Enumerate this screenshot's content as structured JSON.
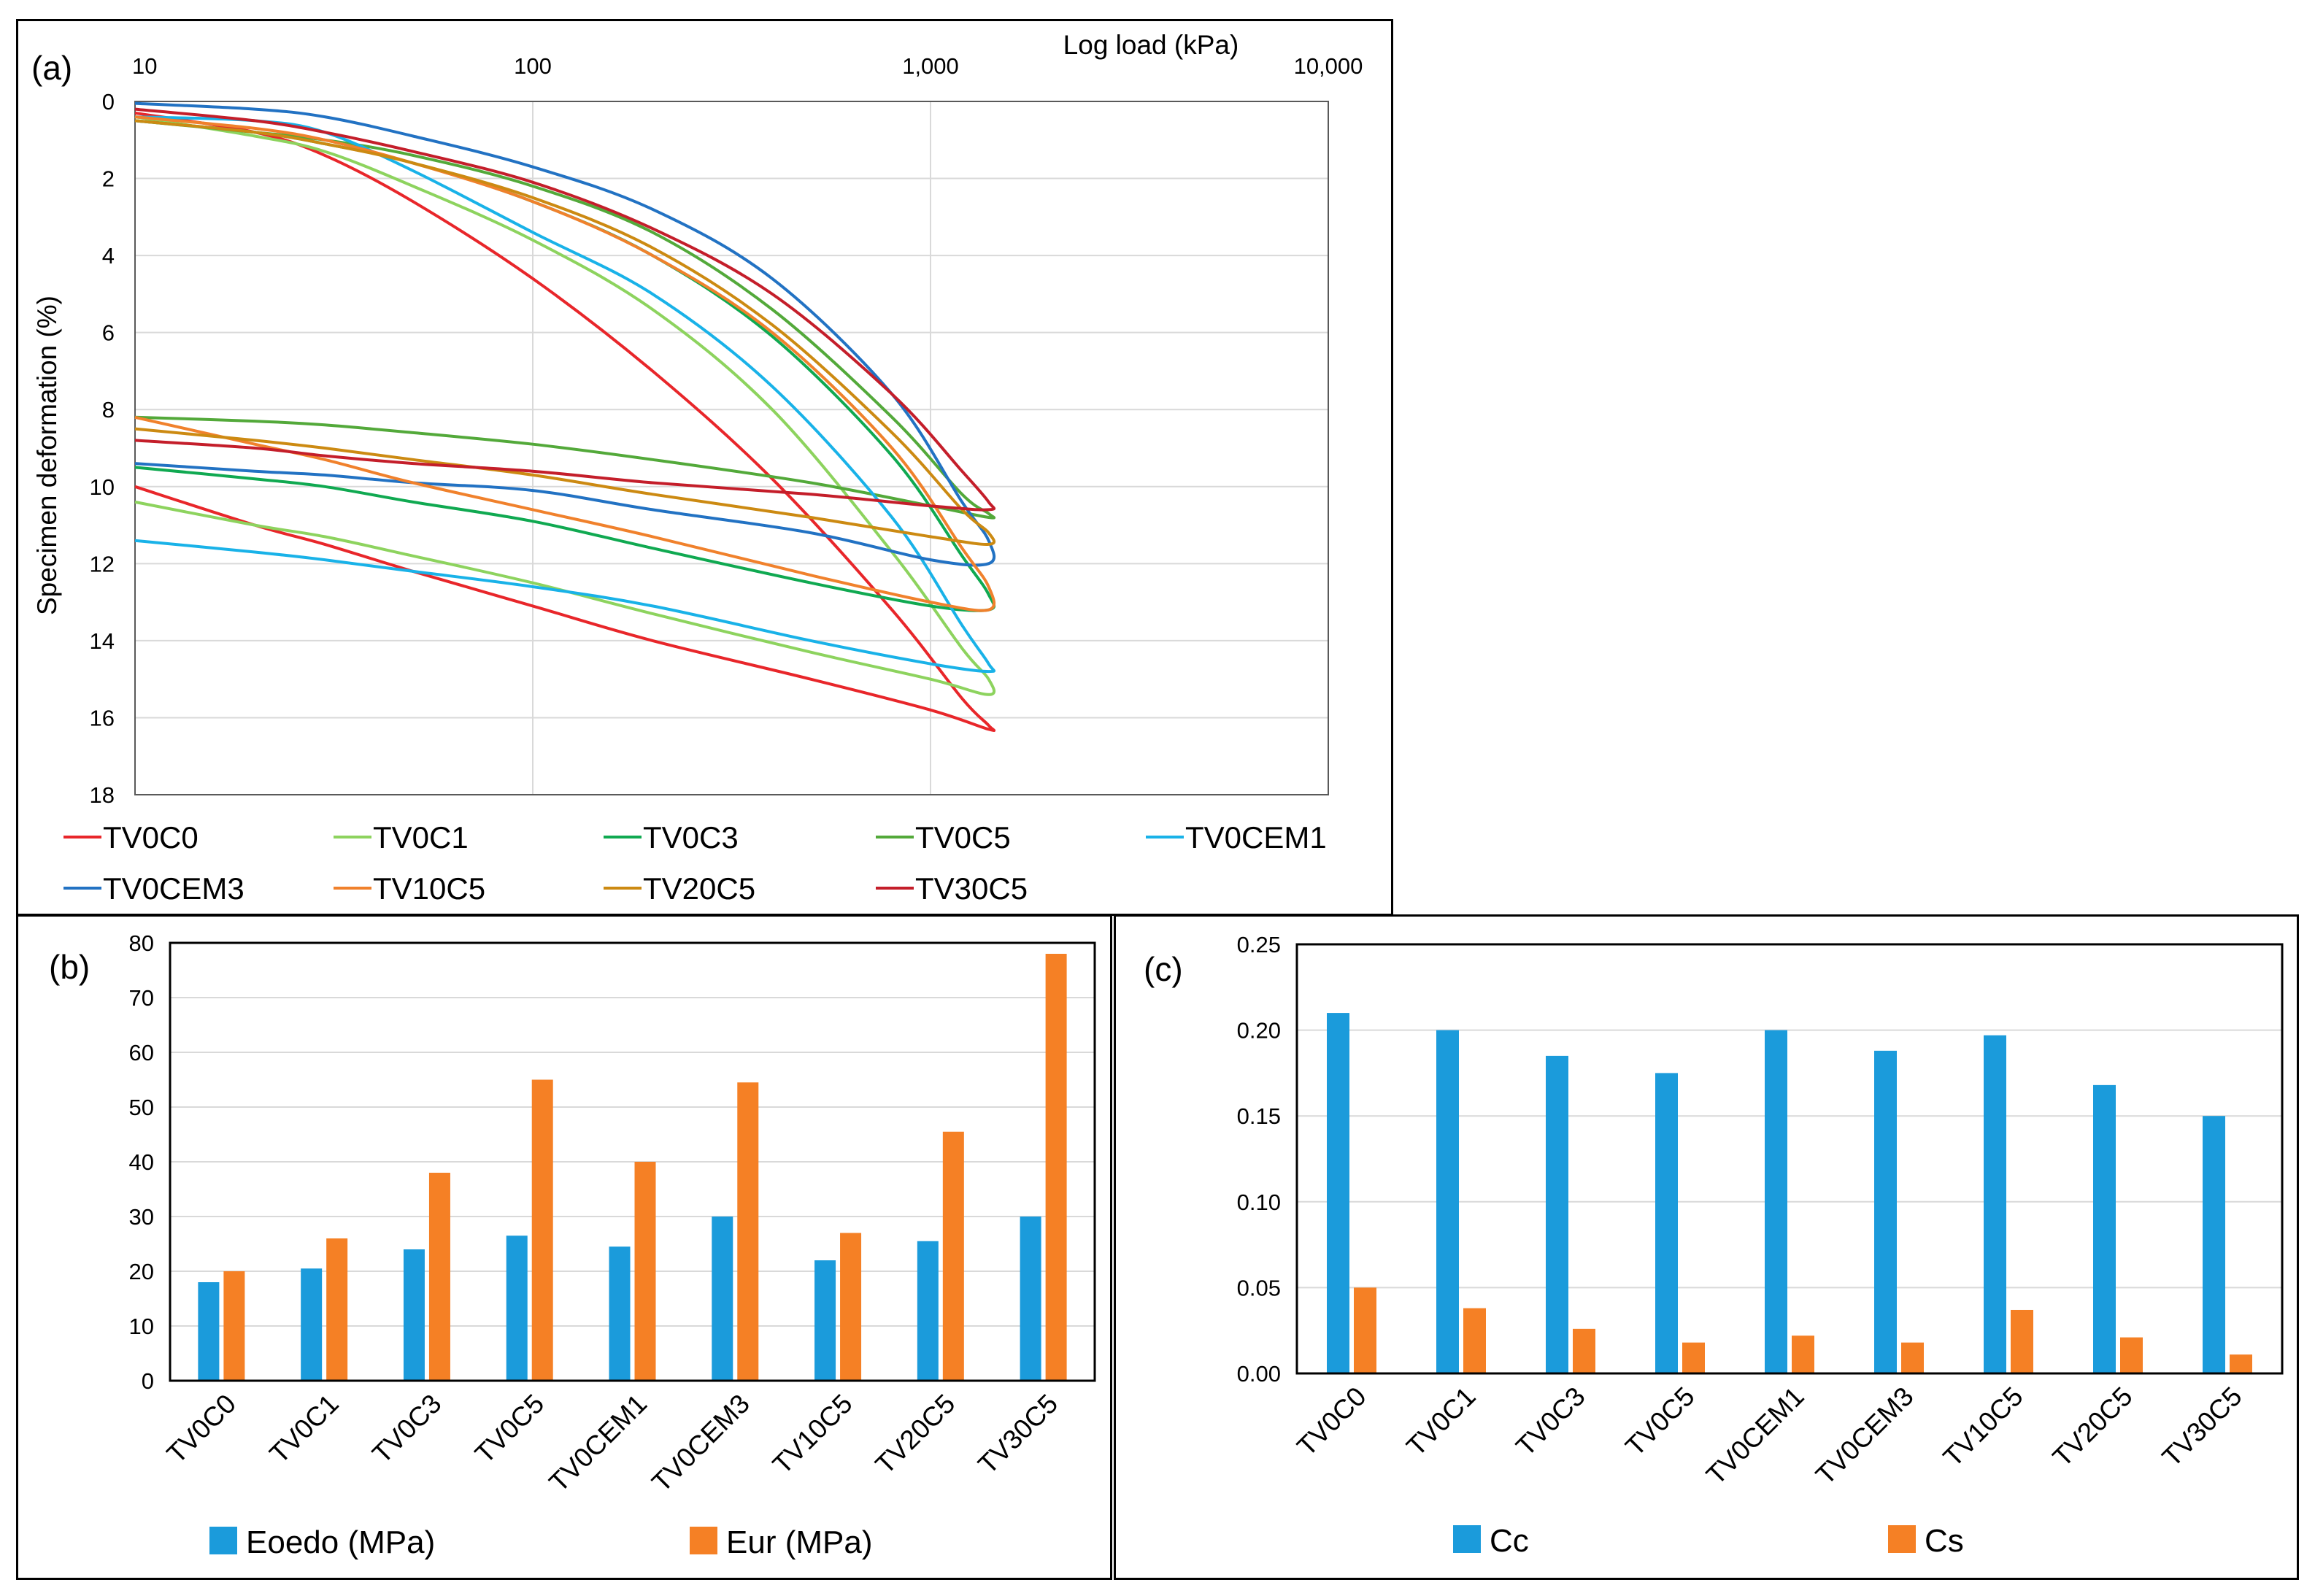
{
  "chart_data": [
    {
      "id": "a",
      "type": "line",
      "panel_label": "(a)",
      "title": "",
      "xlabel": "Log load (kPa)",
      "ylabel": "Specimen deformation (%)",
      "xscale": "log",
      "xlim": [
        10,
        10000
      ],
      "ylim": [
        0,
        18
      ],
      "y_inverted": true,
      "x_ticks": [
        10,
        100,
        1000,
        10000
      ],
      "x_tick_labels": [
        "10",
        "100",
        "1,000",
        "10,000"
      ],
      "y_ticks": [
        0,
        2,
        4,
        6,
        8,
        10,
        12,
        14,
        16,
        18
      ],
      "y_tick_labels": [
        "0",
        "2",
        "4",
        "6",
        "8",
        "10",
        "12",
        "14",
        "16",
        "18"
      ],
      "grid": true,
      "legend_position": "bottom",
      "series": [
        {
          "name": "TV0C0",
          "color": "#E8262A",
          "loading": {
            "x": [
              10,
              20,
              30,
              50,
              100,
              200,
              400,
              800,
              1200,
              1400
            ],
            "y": [
              0.3,
              0.8,
              1.4,
              2.6,
              4.6,
              7.0,
              9.8,
              13.2,
              15.5,
              16.2
            ]
          },
          "unloading": {
            "x": [
              1400,
              1000,
              500,
              200,
              100,
              50,
              30,
              20,
              10
            ],
            "y": [
              16.3,
              15.8,
              15.0,
              14.0,
              13.1,
              12.2,
              11.5,
              11.0,
              10.0
            ]
          }
        },
        {
          "name": "TV0C1",
          "color": "#8DD35E",
          "loading": {
            "x": [
              10,
              20,
              30,
              50,
              100,
              200,
              400,
              800,
              1200,
              1400
            ],
            "y": [
              0.4,
              0.9,
              1.3,
              2.2,
              3.6,
              5.4,
              8.0,
              11.7,
              14.2,
              15.0
            ]
          },
          "unloading": {
            "x": [
              1400,
              1000,
              500,
              200,
              100,
              50,
              30,
              20,
              10
            ],
            "y": [
              15.4,
              15.0,
              14.3,
              13.3,
              12.5,
              11.8,
              11.3,
              11.0,
              10.4
            ]
          }
        },
        {
          "name": "TV0C3",
          "color": "#10A951",
          "loading": {
            "x": [
              10,
              20,
              30,
              50,
              100,
              200,
              400,
              800,
              1200,
              1400
            ],
            "y": [
              0.5,
              0.8,
              1.1,
              1.6,
              2.6,
              4.0,
              6.1,
              9.2,
              11.8,
              12.8
            ]
          },
          "unloading": {
            "x": [
              1400,
              1000,
              500,
              200,
              100,
              50,
              30,
              20,
              10
            ],
            "y": [
              13.2,
              13.1,
              12.5,
              11.6,
              10.9,
              10.4,
              10.0,
              9.8,
              9.5
            ]
          }
        },
        {
          "name": "TV0C5",
          "color": "#53A93A",
          "loading": {
            "x": [
              10,
              20,
              30,
              50,
              100,
              200,
              400,
              800,
              1200,
              1400
            ],
            "y": [
              0.5,
              0.8,
              1.0,
              1.4,
              2.2,
              3.4,
              5.4,
              8.2,
              10.2,
              10.7
            ]
          },
          "unloading": {
            "x": [
              1400,
              1000,
              500,
              200,
              100,
              50,
              30,
              20,
              10
            ],
            "y": [
              10.8,
              10.5,
              9.9,
              9.3,
              8.9,
              8.6,
              8.4,
              8.3,
              8.2
            ]
          }
        },
        {
          "name": "TV0CEM1",
          "color": "#19B2E8",
          "loading": {
            "x": [
              10,
              20,
              30,
              50,
              100,
              200,
              400,
              800,
              1200,
              1400
            ],
            "y": [
              0.4,
              0.5,
              0.8,
              1.8,
              3.4,
              5.0,
              7.4,
              10.8,
              13.6,
              14.6
            ]
          },
          "unloading": {
            "x": [
              1400,
              1000,
              500,
              200,
              100,
              50,
              30,
              20,
              10
            ],
            "y": [
              14.8,
              14.6,
              14.0,
              13.1,
              12.6,
              12.2,
              11.9,
              11.7,
              11.4
            ]
          }
        },
        {
          "name": "TV0CEM3",
          "color": "#2272C3",
          "loading": {
            "x": [
              10,
              20,
              30,
              50,
              100,
              200,
              400,
              800,
              1200,
              1400
            ],
            "y": [
              0.05,
              0.2,
              0.4,
              0.9,
              1.7,
              2.8,
              4.6,
              7.6,
              10.4,
              11.4
            ]
          },
          "unloading": {
            "x": [
              1400,
              1000,
              500,
              200,
              100,
              50,
              30,
              20,
              10
            ],
            "y": [
              12.0,
              11.9,
              11.2,
              10.6,
              10.1,
              9.9,
              9.7,
              9.6,
              9.4
            ]
          }
        },
        {
          "name": "TV10C5",
          "color": "#F0812C",
          "loading": {
            "x": [
              10,
              20,
              30,
              50,
              100,
              200,
              400,
              800,
              1200,
              1400
            ],
            "y": [
              0.4,
              0.7,
              1.0,
              1.6,
              2.6,
              4.0,
              6.0,
              9.0,
              11.6,
              12.6
            ]
          },
          "unloading": {
            "x": [
              1400,
              1000,
              500,
              200,
              100,
              50,
              30,
              20,
              10
            ],
            "y": [
              13.2,
              13.0,
              12.3,
              11.3,
              10.6,
              9.9,
              9.3,
              8.9,
              8.2
            ]
          }
        },
        {
          "name": "TV20C5",
          "color": "#CC8A12",
          "loading": {
            "x": [
              10,
              20,
              30,
              50,
              100,
              200,
              400,
              800,
              1200,
              1400
            ],
            "y": [
              0.5,
              0.8,
              1.1,
              1.6,
              2.5,
              3.8,
              5.8,
              8.6,
              10.6,
              11.2
            ]
          },
          "unloading": {
            "x": [
              1400,
              1000,
              500,
              200,
              100,
              50,
              30,
              20,
              10
            ],
            "y": [
              11.5,
              11.3,
              10.8,
              10.2,
              9.7,
              9.3,
              9.0,
              8.8,
              8.5
            ]
          }
        },
        {
          "name": "TV30C5",
          "color": "#C41E2A",
          "loading": {
            "x": [
              10,
              20,
              30,
              50,
              100,
              200,
              400,
              800,
              1200,
              1400
            ],
            "y": [
              0.2,
              0.5,
              0.8,
              1.3,
              2.1,
              3.3,
              5.0,
              7.6,
              9.6,
              10.4
            ]
          },
          "unloading": {
            "x": [
              1400,
              1000,
              500,
              200,
              100,
              50,
              30,
              20,
              10
            ],
            "y": [
              10.6,
              10.5,
              10.2,
              9.9,
              9.6,
              9.4,
              9.2,
              9.0,
              8.8
            ]
          }
        }
      ]
    },
    {
      "id": "b",
      "type": "bar",
      "panel_label": "(b)",
      "title": "",
      "xlabel": "",
      "ylabel": "",
      "ylim": [
        0,
        80
      ],
      "y_ticks": [
        0,
        10,
        20,
        30,
        40,
        50,
        60,
        70,
        80
      ],
      "y_tick_labels": [
        "0",
        "10",
        "20",
        "30",
        "40",
        "50",
        "60",
        "70",
        "80"
      ],
      "grid": true,
      "legend_position": "bottom",
      "categories": [
        "TV0C0",
        "TV0C1",
        "TV0C3",
        "TV0C5",
        "TV0CEM1",
        "TV0CEM3",
        "TV10C5",
        "TV20C5",
        "TV30C5"
      ],
      "series": [
        {
          "name": "Eoedo (MPa)",
          "color": "#1B9BDB",
          "values": [
            18,
            20.5,
            24,
            26.5,
            24.5,
            30,
            22,
            25.5,
            30
          ]
        },
        {
          "name": "Eur (MPa)",
          "color": "#F58025",
          "values": [
            20,
            26,
            38,
            55,
            40,
            54.5,
            27,
            45.5,
            78
          ]
        }
      ]
    },
    {
      "id": "c",
      "type": "bar",
      "panel_label": "(c)",
      "title": "",
      "xlabel": "",
      "ylabel": "",
      "ylim": [
        0,
        0.25
      ],
      "y_ticks": [
        0,
        0.05,
        0.1,
        0.15,
        0.2,
        0.25
      ],
      "y_tick_labels": [
        "0.00",
        "0.05",
        "0.10",
        "0.15",
        "0.20",
        "0.25"
      ],
      "grid": true,
      "legend_position": "bottom",
      "categories": [
        "TV0C0",
        "TV0C1",
        "TV0C3",
        "TV0C5",
        "TV0CEM1",
        "TV0CEM3",
        "TV10C5",
        "TV20C5",
        "TV30C5"
      ],
      "series": [
        {
          "name": "Cc",
          "color": "#1B9BDB",
          "values": [
            0.21,
            0.2,
            0.185,
            0.175,
            0.2,
            0.188,
            0.197,
            0.168,
            0.15
          ]
        },
        {
          "name": "Cs",
          "color": "#F58025",
          "values": [
            0.05,
            0.038,
            0.026,
            0.018,
            0.022,
            0.018,
            0.037,
            0.021,
            0.011
          ]
        }
      ]
    }
  ]
}
